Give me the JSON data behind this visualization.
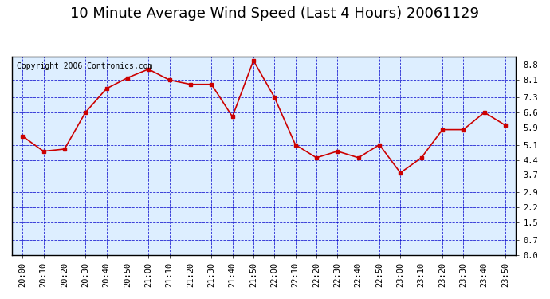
{
  "title": "10 Minute Average Wind Speed (Last 4 Hours) 20061129",
  "copyright": "Copyright 2006 Contronics.com",
  "x_labels": [
    "20:00",
    "20:10",
    "20:20",
    "20:30",
    "20:40",
    "20:50",
    "21:00",
    "21:10",
    "21:20",
    "21:30",
    "21:40",
    "21:50",
    "22:00",
    "22:10",
    "22:20",
    "22:30",
    "22:40",
    "22:50",
    "23:00",
    "23:10",
    "23:20",
    "23:30",
    "23:40",
    "23:50"
  ],
  "y_values": [
    5.5,
    4.8,
    4.9,
    6.6,
    7.7,
    8.2,
    8.6,
    8.1,
    7.9,
    7.9,
    6.4,
    9.0,
    7.3,
    5.1,
    4.5,
    4.8,
    4.5,
    5.1,
    3.8,
    4.5,
    5.8,
    5.8,
    6.6,
    6.0
  ],
  "line_color": "#cc0000",
  "marker_color": "#cc0000",
  "grid_color": "#0000cc",
  "bg_color": "#ffffff",
  "plot_bg_color": "#ddeeff",
  "title_color": "#000000",
  "copyright_color": "#000000",
  "ylim": [
    0.0,
    9.2
  ],
  "yticks": [
    0.0,
    0.7,
    1.5,
    2.2,
    2.9,
    3.7,
    4.4,
    5.1,
    5.9,
    6.6,
    7.3,
    8.1,
    8.8
  ],
  "title_fontsize": 13,
  "copyright_fontsize": 7,
  "tick_fontsize": 7.5
}
